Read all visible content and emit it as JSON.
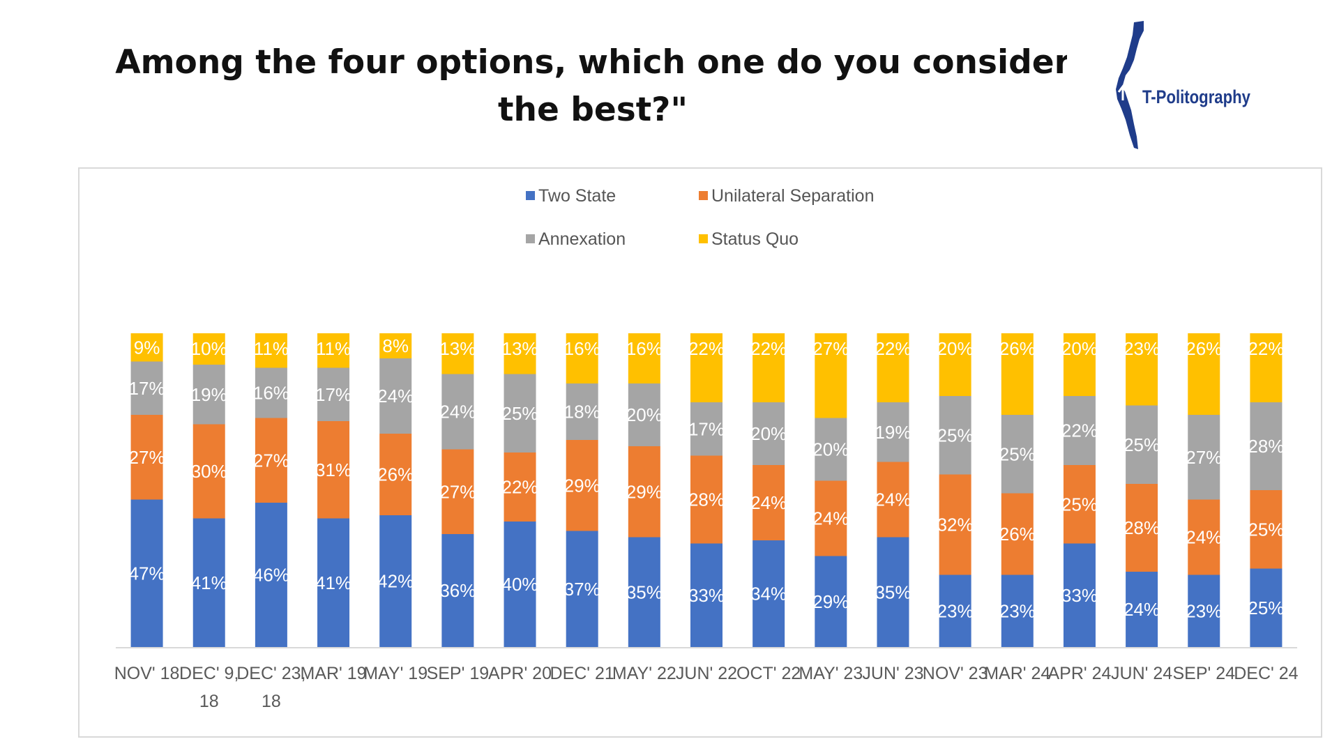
{
  "title_line1": "Among the four options, which one do you consider",
  "title_line2": "the best?\"",
  "logo": {
    "text": "T-Politography",
    "icon": "israel-map-icon",
    "color": "#1f3c8a"
  },
  "chart_data": {
    "type": "bar",
    "stacked": true,
    "categories": [
      [
        "NOV' 18"
      ],
      [
        "DEC' 9,",
        "18"
      ],
      [
        "DEC' 23,",
        "18"
      ],
      [
        "MAR' 19"
      ],
      [
        "MAY' 19"
      ],
      [
        "SEP' 19"
      ],
      [
        "APR' 20"
      ],
      [
        "DEC' 21"
      ],
      [
        "MAY' 22"
      ],
      [
        "JUN' 22"
      ],
      [
        "OCT' 22"
      ],
      [
        "MAY' 23"
      ],
      [
        "JUN' 23"
      ],
      [
        "NOV' 23"
      ],
      [
        "MAR' 24"
      ],
      [
        "APR' 24"
      ],
      [
        "JUN' 24"
      ],
      [
        "SEP' 24"
      ],
      [
        "DEC' 24"
      ]
    ],
    "series": [
      {
        "name": "Two State",
        "color": "#4472c4",
        "values": [
          47,
          41,
          46,
          41,
          42,
          36,
          40,
          37,
          35,
          33,
          34,
          29,
          35,
          23,
          23,
          33,
          24,
          23,
          25
        ]
      },
      {
        "name": "Unilateral Separation",
        "color": "#ed7d31",
        "values": [
          27,
          30,
          27,
          31,
          26,
          27,
          22,
          29,
          29,
          28,
          24,
          24,
          24,
          32,
          26,
          25,
          28,
          24,
          25
        ]
      },
      {
        "name": "Annexation",
        "color": "#a5a5a5",
        "values": [
          17,
          19,
          16,
          17,
          24,
          24,
          25,
          18,
          20,
          17,
          20,
          20,
          19,
          25,
          25,
          22,
          25,
          27,
          28
        ]
      },
      {
        "name": "Status Quo",
        "color": "#ffc000",
        "values": [
          9,
          10,
          11,
          11,
          8,
          13,
          13,
          16,
          16,
          22,
          22,
          27,
          22,
          20,
          26,
          20,
          23,
          26,
          22
        ]
      }
    ],
    "value_suffix": "%",
    "ylim": [
      0,
      100
    ],
    "legend_position": "top",
    "grid": false
  }
}
